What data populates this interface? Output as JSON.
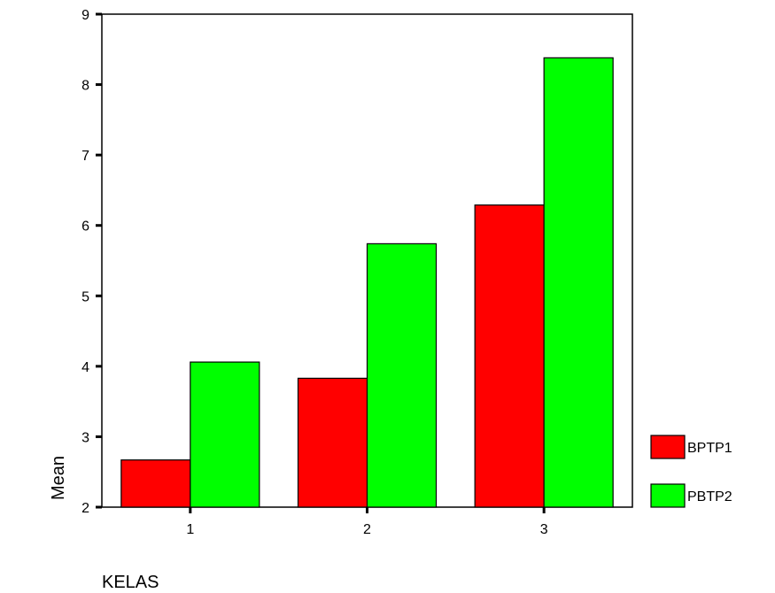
{
  "chart_data": {
    "type": "bar",
    "title": "",
    "xlabel": "KELAS",
    "ylabel": "Mean",
    "categories": [
      "1",
      "2",
      "3"
    ],
    "series": [
      {
        "name": "BPTP1",
        "color": "#ff0000",
        "values": [
          2.67,
          3.83,
          6.29
        ]
      },
      {
        "name": "PBTP2",
        "color": "#00ff00",
        "values": [
          4.06,
          5.74,
          8.38
        ]
      }
    ],
    "ylim": [
      2,
      9
    ],
    "yticks": [
      2,
      3,
      4,
      5,
      6,
      7,
      8,
      9
    ],
    "grid": false,
    "legend": "right"
  }
}
